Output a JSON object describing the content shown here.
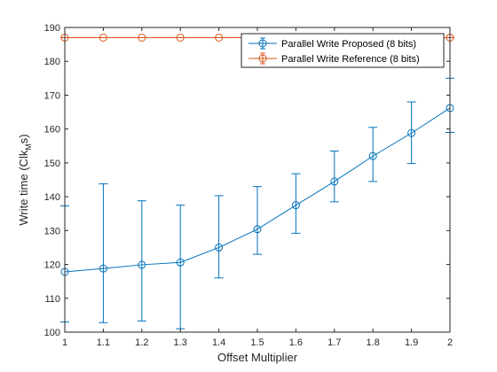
{
  "chart_data": {
    "type": "line",
    "xlabel": "Offset Multiplier",
    "ylabel": "Write time (Clk_M s)",
    "ylabel_main": "Write time (Clk",
    "ylabel_sub": "M",
    "ylabel_tail": "s)",
    "xlim": [
      1,
      2
    ],
    "ylim": [
      100,
      190
    ],
    "xticks": [
      1,
      1.1,
      1.2,
      1.3,
      1.4,
      1.5,
      1.6,
      1.7,
      1.8,
      1.9,
      2
    ],
    "yticks": [
      100,
      110,
      120,
      130,
      140,
      150,
      160,
      170,
      180,
      190
    ],
    "legend_position": "top-right",
    "marker": "circle",
    "error_bars": true,
    "series": [
      {
        "name": "Parallel Write Proposed (8 bits)",
        "color": "#0072BD",
        "x": [
          1,
          1.1,
          1.2,
          1.3,
          1.4,
          1.5,
          1.6,
          1.7,
          1.8,
          1.9,
          2
        ],
        "y": [
          117.8,
          118.8,
          119.9,
          120.6,
          125.0,
          130.4,
          137.5,
          144.5,
          152.0,
          158.8,
          166.2
        ],
        "lower": [
          103.0,
          102.8,
          103.3,
          101.0,
          116.0,
          123.0,
          129.2,
          138.5,
          144.5,
          149.8,
          159.0
        ],
        "upper": [
          137.3,
          143.8,
          138.8,
          137.5,
          140.3,
          143.0,
          146.8,
          153.5,
          160.5,
          168.0,
          175.0
        ]
      },
      {
        "name": "Parallel Write Reference (8 bits)",
        "color": "#D95319",
        "x": [
          1,
          1.1,
          1.2,
          1.3,
          1.4,
          1.5,
          1.6,
          1.7,
          1.8,
          1.9,
          2
        ],
        "y": [
          187,
          187,
          187,
          187,
          187,
          187,
          187,
          187,
          187,
          187,
          187
        ],
        "lower": [
          187,
          187,
          187,
          187,
          187,
          187,
          187,
          187,
          187,
          187,
          187
        ],
        "upper": [
          187,
          187,
          187,
          187,
          187,
          187,
          187,
          187,
          187,
          187,
          187
        ]
      }
    ]
  }
}
